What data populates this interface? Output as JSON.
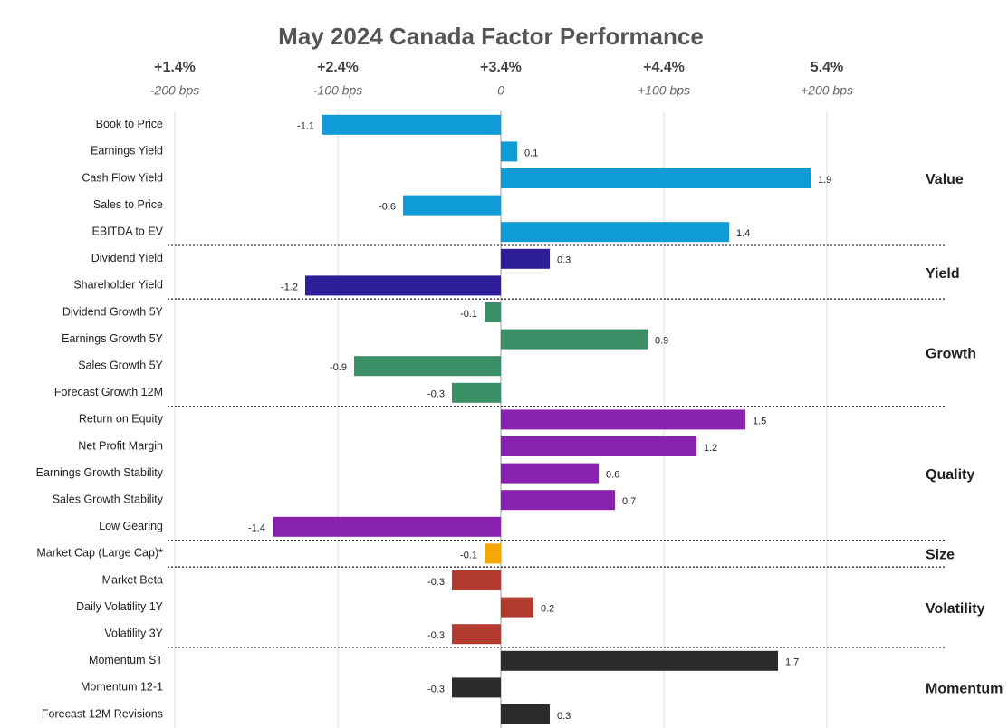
{
  "chart_data": {
    "type": "barh",
    "title": "May 2024 Canada Factor Performance",
    "xlim": [
      -2.05,
      2.5
    ],
    "xticks": [
      {
        "value": -2,
        "label": "-200 bps"
      },
      {
        "value": -1,
        "label": "-100 bps"
      },
      0,
      {
        "value": 1,
        "label": "+100 bps"
      },
      {
        "value": 2,
        "label": "+200 bps"
      }
    ],
    "x2ticks": [
      {
        "value": -2,
        "label": "+1.4%"
      },
      {
        "value": -1,
        "label": "+2.4%"
      },
      {
        "value": 0,
        "label": "+3.4%"
      },
      {
        "value": 1,
        "label": "+4.4%"
      },
      {
        "value": 2,
        "label": "5.4%"
      }
    ],
    "series": [
      {
        "name": "Value",
        "color": "#0e9bd6",
        "categories": [
          "Book to Price",
          "Earnings Yield",
          "Cash Flow Yield",
          "Sales to Price",
          "EBITDA to EV"
        ],
        "values": [
          -1.1,
          0.1,
          1.9,
          -0.6,
          1.4
        ]
      },
      {
        "name": "Yield",
        "color": "#2e1e9a",
        "categories": [
          "Dividend Yield",
          "Shareholder Yield"
        ],
        "values": [
          0.3,
          -1.2
        ]
      },
      {
        "name": "Growth",
        "color": "#3a8f66",
        "categories": [
          "Dividend Growth 5Y",
          "Earnings Growth 5Y",
          "Sales Growth 5Y",
          "Forecast Growth 12M"
        ],
        "values": [
          -0.1,
          0.9,
          -0.9,
          -0.3
        ]
      },
      {
        "name": "Quality",
        "color": "#8a22b0",
        "categories": [
          "Return on Equity",
          "Net Profit Margin",
          "Earnings Growth Stability",
          "Sales Growth Stability",
          "Low Gearing"
        ],
        "values": [
          1.5,
          1.2,
          0.6,
          0.7,
          -1.4
        ]
      },
      {
        "name": "Size",
        "color": "#f5a800",
        "categories": [
          "Market Cap (Large Cap)*"
        ],
        "values": [
          -0.1
        ]
      },
      {
        "name": "Volatility",
        "color": "#b23a2e",
        "categories": [
          "Market Beta",
          "Daily Volatility 1Y",
          "Volatility 3Y"
        ],
        "values": [
          -0.3,
          0.2,
          -0.3
        ]
      },
      {
        "name": "Momentum",
        "color": "#2b2b2b",
        "categories": [
          "Momentum ST",
          "Momentum 12-1",
          "Forecast 12M Revisions"
        ],
        "values": [
          1.7,
          -0.3,
          0.3
        ]
      }
    ]
  }
}
